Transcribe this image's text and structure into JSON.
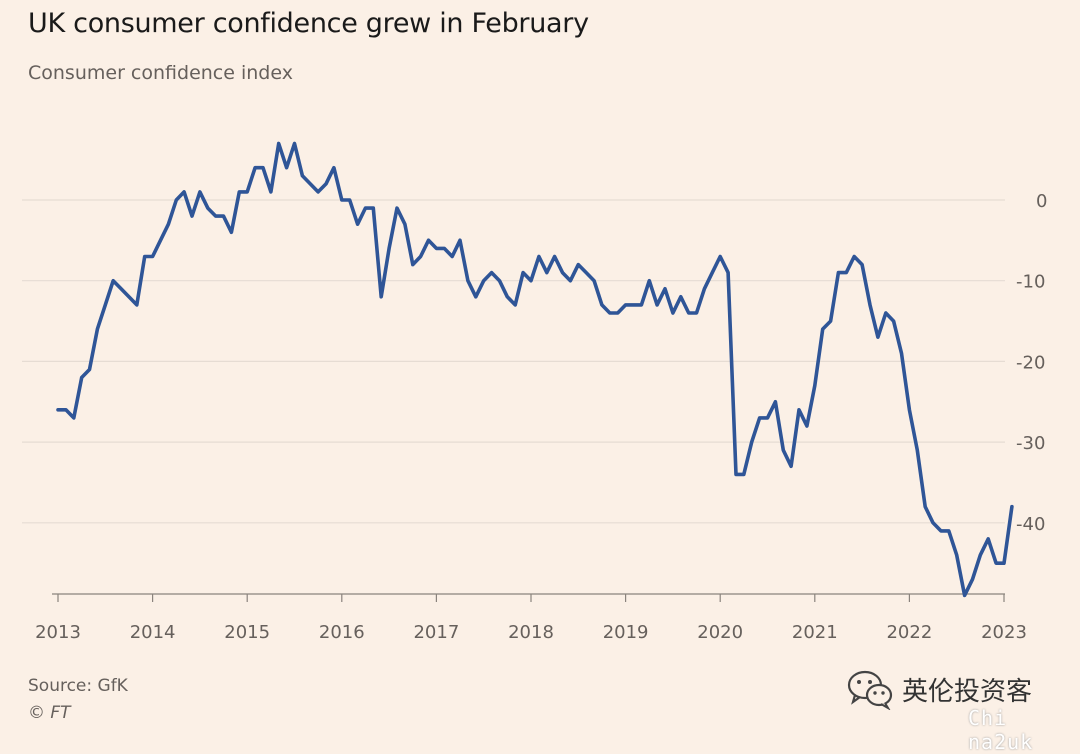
{
  "header": {
    "title": "UK consumer confidence grew in February",
    "subtitle": "Consumer confidence index"
  },
  "footer": {
    "source": "Source: GfK",
    "copyright": "© FT"
  },
  "watermark": {
    "text": "英伦投资客",
    "handle": "Chi na2uk",
    "icon": "wechat-icon"
  },
  "colors": {
    "background": "#fbf0e6",
    "line": "#2f5597",
    "grid": "#e6dcd3",
    "axis": "#66605c"
  },
  "chart_data": {
    "type": "line",
    "title": "UK consumer confidence grew in February",
    "subtitle": "Consumer confidence index",
    "xlabel": "",
    "ylabel": "",
    "xlim": [
      "2013-01",
      "2023-02"
    ],
    "ylim": [
      -49,
      7
    ],
    "grid": true,
    "y_ticks": [
      0,
      -10,
      -20,
      -30,
      -40
    ],
    "y_tick_labels": [
      "0",
      "-10",
      "-20",
      "-30",
      "-40"
    ],
    "x_ticks": [
      "2013",
      "2014",
      "2015",
      "2016",
      "2017",
      "2018",
      "2019",
      "2020",
      "2021",
      "2022",
      "2023"
    ],
    "series": [
      {
        "name": "",
        "x": [
          "2013-01",
          "2013-02",
          "2013-03",
          "2013-04",
          "2013-05",
          "2013-06",
          "2013-07",
          "2013-08",
          "2013-09",
          "2013-10",
          "2013-11",
          "2013-12",
          "2014-01",
          "2014-02",
          "2014-03",
          "2014-04",
          "2014-05",
          "2014-06",
          "2014-07",
          "2014-08",
          "2014-09",
          "2014-10",
          "2014-11",
          "2014-12",
          "2015-01",
          "2015-02",
          "2015-03",
          "2015-04",
          "2015-05",
          "2015-06",
          "2015-07",
          "2015-08",
          "2015-09",
          "2015-10",
          "2015-11",
          "2015-12",
          "2016-01",
          "2016-02",
          "2016-03",
          "2016-04",
          "2016-05",
          "2016-06",
          "2016-07",
          "2016-08",
          "2016-09",
          "2016-10",
          "2016-11",
          "2016-12",
          "2017-01",
          "2017-02",
          "2017-03",
          "2017-04",
          "2017-05",
          "2017-06",
          "2017-07",
          "2017-08",
          "2017-09",
          "2017-10",
          "2017-11",
          "2017-12",
          "2018-01",
          "2018-02",
          "2018-03",
          "2018-04",
          "2018-05",
          "2018-06",
          "2018-07",
          "2018-08",
          "2018-09",
          "2018-10",
          "2018-11",
          "2018-12",
          "2019-01",
          "2019-02",
          "2019-03",
          "2019-04",
          "2019-05",
          "2019-06",
          "2019-07",
          "2019-08",
          "2019-09",
          "2019-10",
          "2019-11",
          "2019-12",
          "2020-01",
          "2020-02",
          "2020-03",
          "2020-04",
          "2020-05",
          "2020-06",
          "2020-07",
          "2020-08",
          "2020-09",
          "2020-10",
          "2020-11",
          "2020-12",
          "2021-01",
          "2021-02",
          "2021-03",
          "2021-04",
          "2021-05",
          "2021-06",
          "2021-07",
          "2021-08",
          "2021-09",
          "2021-10",
          "2021-11",
          "2021-12",
          "2022-01",
          "2022-02",
          "2022-03",
          "2022-04",
          "2022-05",
          "2022-06",
          "2022-07",
          "2022-08",
          "2022-09",
          "2022-10",
          "2022-11",
          "2022-12",
          "2023-01",
          "2023-02"
        ],
        "values": [
          -26,
          -26,
          -27,
          -22,
          -21,
          -16,
          -13,
          -10,
          -11,
          -12,
          -13,
          -7,
          -7,
          -5,
          -3,
          0,
          1,
          -2,
          1,
          -1,
          -2,
          -2,
          -4,
          1,
          1,
          4,
          4,
          1,
          7,
          4,
          7,
          3,
          2,
          1,
          2,
          4,
          0,
          0,
          -3,
          -1,
          -1,
          -12,
          -6,
          -1,
          -3,
          -8,
          -7,
          -5,
          -6,
          -6,
          -7,
          -5,
          -10,
          -12,
          -10,
          -9,
          -10,
          -12,
          -13,
          -9,
          -10,
          -7,
          -9,
          -7,
          -9,
          -10,
          -8,
          -9,
          -10,
          -13,
          -14,
          -14,
          -13,
          -13,
          -13,
          -10,
          -13,
          -11,
          -14,
          -12,
          -14,
          -14,
          -11,
          -9,
          -7,
          -9,
          -34,
          -34,
          -30,
          -27,
          -27,
          -25,
          -31,
          -33,
          -26,
          -28,
          -23,
          -16,
          -15,
          -9,
          -9,
          -7,
          -8,
          -13,
          -17,
          -14,
          -15,
          -19,
          -26,
          -31,
          -38,
          -40,
          -41,
          -41,
          -44,
          -49,
          -47,
          -44,
          -42,
          -45,
          -45,
          -38
        ]
      }
    ],
    "annotations": []
  }
}
